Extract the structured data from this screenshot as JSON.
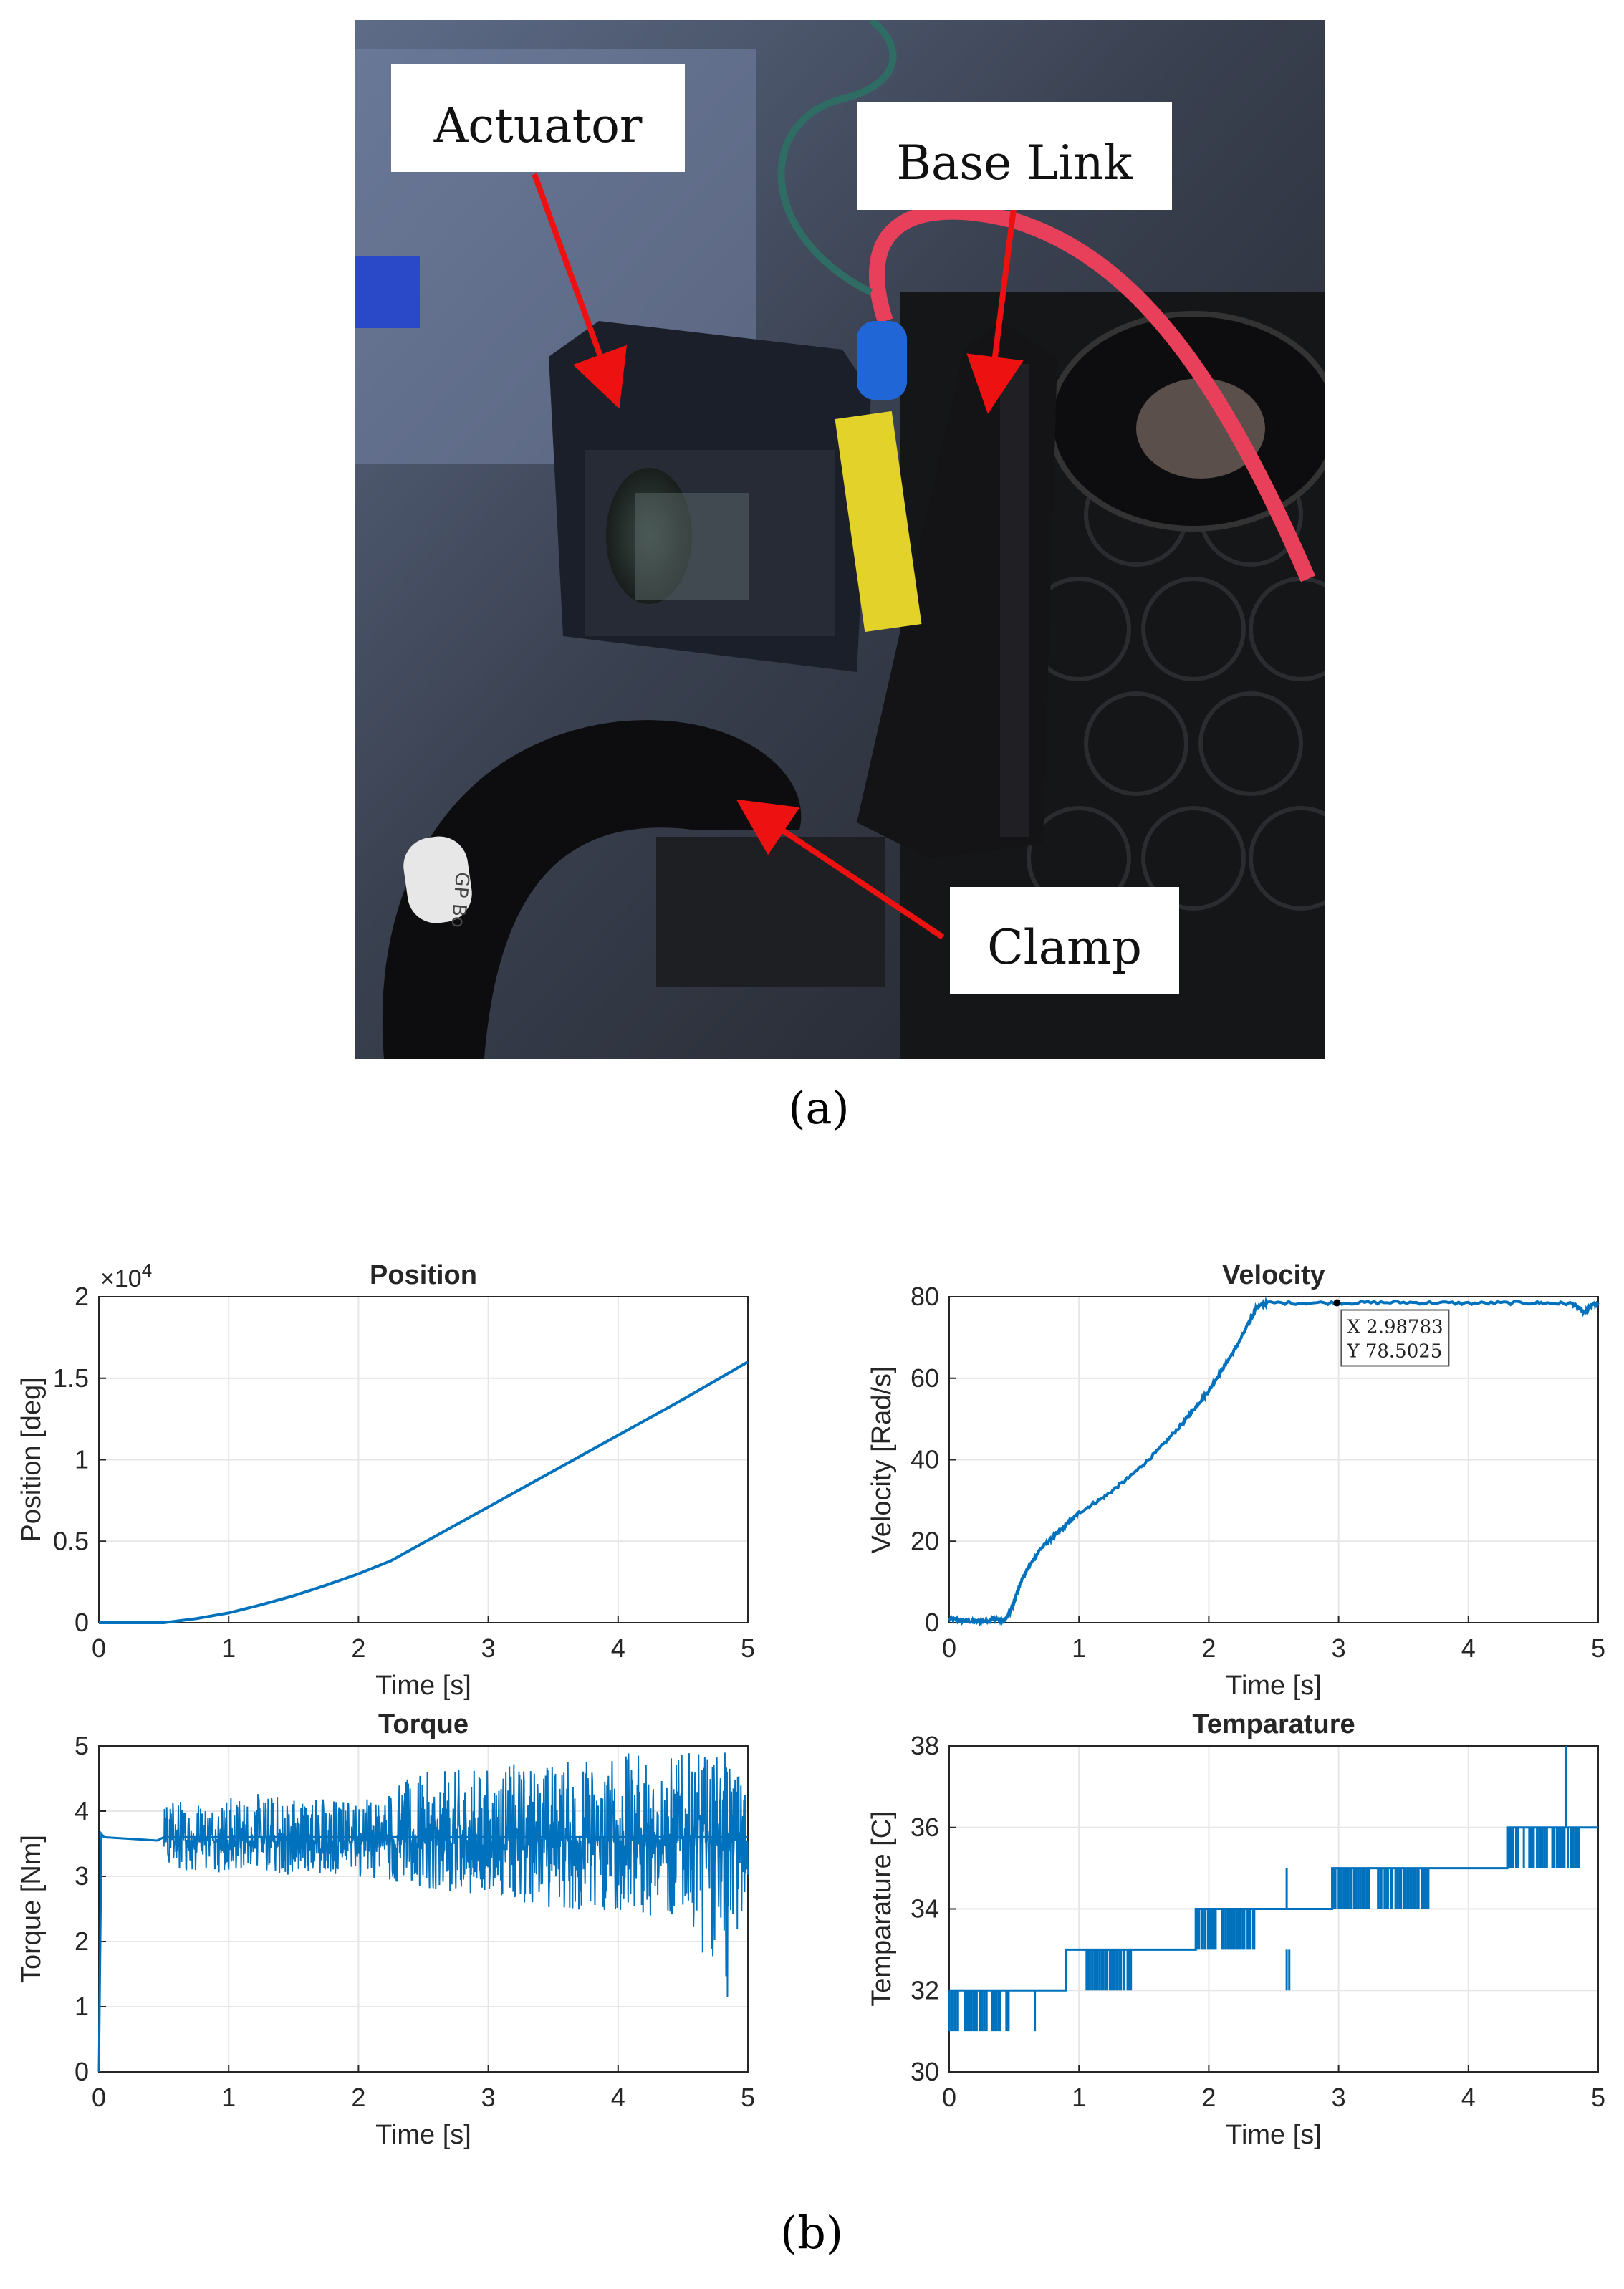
{
  "figure": {
    "panel_a_label": "(a)",
    "panel_b_label": "(b)",
    "photo": {
      "callouts": {
        "actuator": "Actuator",
        "base_link": "Base Link",
        "clamp": "Clamp"
      },
      "label_on_clamp": "GP Bo"
    }
  },
  "colors": {
    "series": "#0072BD",
    "callout_arrow": "#ee1111",
    "grid": "#e6e6e6",
    "axes": "#262626"
  },
  "chart_data": [
    {
      "id": "position",
      "type": "line",
      "title": "Position",
      "xlabel": "Time [s]",
      "ylabel": "Position [deg]",
      "xlim": [
        0,
        5
      ],
      "ylim": [
        0,
        20000
      ],
      "xticks": [
        0,
        1,
        2,
        3,
        4,
        5
      ],
      "yticks": [
        0,
        5000,
        10000,
        15000,
        20000
      ],
      "yticklabels": [
        "0",
        "0.5",
        "1",
        "1.5",
        "2"
      ],
      "exponent_label": "×10^4",
      "grid": true,
      "series": [
        {
          "x": [
            0,
            0.5,
            0.75,
            1.0,
            1.25,
            1.5,
            1.75,
            2.0,
            2.25,
            2.5,
            2.75,
            3.0,
            3.5,
            4.0,
            4.5,
            5.0
          ],
          "values": [
            0,
            0,
            250,
            600,
            1100,
            1650,
            2300,
            3000,
            3800,
            4900,
            6000,
            7100,
            9300,
            11500,
            13700,
            16000
          ]
        }
      ],
      "grid_style": "on"
    },
    {
      "id": "velocity",
      "type": "line",
      "title": "Velocity",
      "xlabel": "Time [s]",
      "ylabel": "Velocity [Rad/s]",
      "xlim": [
        0,
        5
      ],
      "ylim": [
        0,
        80
      ],
      "xticks": [
        0,
        1,
        2,
        3,
        4,
        5
      ],
      "yticks": [
        0,
        20,
        40,
        60,
        80
      ],
      "grid": true,
      "series": [
        {
          "x": [
            0,
            0.1,
            0.2,
            0.3,
            0.35,
            0.42,
            0.46,
            0.5,
            0.55,
            0.6,
            0.7,
            0.8,
            0.9,
            1.0,
            1.2,
            1.4,
            1.6,
            1.8,
            1.9,
            2.0,
            2.1,
            2.2,
            2.3,
            2.37,
            2.45,
            3.0,
            3.5,
            4.0,
            4.5,
            4.8,
            4.9,
            4.95,
            5.0
          ],
          "values": [
            1,
            0.5,
            0.3,
            0.5,
            1,
            0.4,
            2,
            5,
            10,
            13,
            18,
            21,
            24,
            27,
            31,
            36,
            42,
            49,
            53,
            57,
            62,
            67,
            73,
            77.5,
            78.5,
            78.5,
            78.6,
            78.4,
            78.5,
            78.3,
            76,
            78,
            78.5
          ]
        }
      ],
      "datatip": {
        "x_label": "X 2.98783",
        "y_label": "Y 78.5025",
        "x": 2.98783,
        "y": 78.5025
      }
    },
    {
      "id": "torque",
      "type": "line",
      "title": "Torque",
      "xlabel": "Time [s]",
      "ylabel": "Torque [Nm]",
      "xlim": [
        0,
        5
      ],
      "ylim": [
        0,
        5
      ],
      "xticks": [
        0,
        1,
        2,
        3,
        4,
        5
      ],
      "yticks": [
        0,
        1,
        2,
        3,
        4,
        5
      ],
      "grid": true,
      "series": [
        {
          "x": [
            0,
            0.02,
            0.04,
            0.45,
            0.5,
            5.0
          ],
          "values": [
            0,
            3.65,
            3.6,
            3.55,
            3.6,
            3.6
          ],
          "noise_band": [
            {
              "x": 0.5,
              "lo": 3.1,
              "hi": 4.2
            },
            {
              "x": 1.5,
              "lo": 3.0,
              "hi": 4.3
            },
            {
              "x": 2.0,
              "lo": 3.0,
              "hi": 4.2
            },
            {
              "x": 2.5,
              "lo": 2.8,
              "hi": 4.6
            },
            {
              "x": 3.0,
              "lo": 2.6,
              "hi": 4.7
            },
            {
              "x": 3.5,
              "lo": 2.5,
              "hi": 4.8
            },
            {
              "x": 4.0,
              "lo": 2.4,
              "hi": 4.9
            },
            {
              "x": 4.5,
              "lo": 2.3,
              "hi": 4.9
            },
            {
              "x": 4.85,
              "lo": 1.1,
              "hi": 4.9
            },
            {
              "x": 5.0,
              "lo": 2.7,
              "hi": 4.5
            }
          ]
        }
      ]
    },
    {
      "id": "temperature",
      "type": "line",
      "title": "Temparature",
      "xlabel": "Time [s]",
      "ylabel": "Temparature [C]",
      "xlim": [
        0,
        5
      ],
      "ylim": [
        30,
        38
      ],
      "xticks": [
        0,
        1,
        2,
        3,
        4,
        5
      ],
      "yticks": [
        30,
        32,
        34,
        36,
        38
      ],
      "grid": true,
      "series": [
        {
          "steps": [
            {
              "x0": 0,
              "x1": 0.9,
              "value": 32
            },
            {
              "x0": 0.9,
              "x1": 1.9,
              "value": 33
            },
            {
              "x0": 1.9,
              "x1": 2.95,
              "value": 34
            },
            {
              "x0": 2.95,
              "x1": 4.3,
              "value": 35
            },
            {
              "x0": 4.3,
              "x1": 5.0,
              "value": 36
            }
          ],
          "dips": [
            {
              "x0": 0.0,
              "x1": 0.5,
              "value": 31
            },
            {
              "x0": 0.65,
              "x1": 0.68,
              "value": 31
            },
            {
              "x0": 1.05,
              "x1": 1.4,
              "value": 32
            },
            {
              "x0": 1.65,
              "x1": 1.67,
              "value": 32
            },
            {
              "x0": 1.9,
              "x1": 2.35,
              "value": 33
            },
            {
              "x0": 2.6,
              "x1": 2.62,
              "value": 32
            },
            {
              "x0": 2.95,
              "x1": 3.7,
              "value": 34
            },
            {
              "x0": 4.3,
              "x1": 4.85,
              "value": 35
            }
          ],
          "spikes": [
            {
              "x": 2.6,
              "value": 35
            },
            {
              "x": 4.75,
              "value": 38
            }
          ]
        }
      ]
    }
  ]
}
